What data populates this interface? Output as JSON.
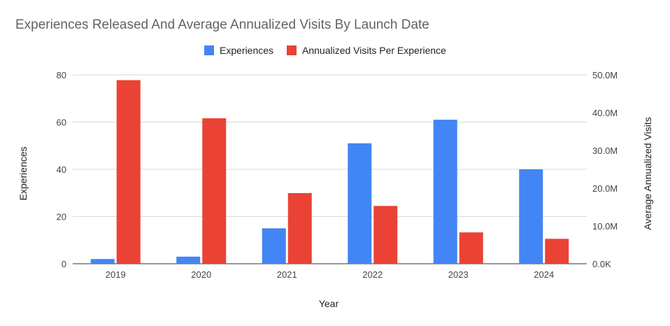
{
  "chart_data": {
    "type": "bar",
    "title": "Experiences Released And Average Annualized Visits By Launch Date",
    "xlabel": "Year",
    "ylabel_left": "Experiences",
    "ylabel_right": "Average Annualized Visits",
    "categories": [
      "2019",
      "2020",
      "2021",
      "2022",
      "2023",
      "2024"
    ],
    "series": [
      {
        "name": "Experiences",
        "axis": "left",
        "color": "#4285F4",
        "values": [
          2,
          3,
          15,
          51,
          61,
          40
        ]
      },
      {
        "name": "Annualized Visits Per Experience",
        "axis": "right",
        "color": "#EA4335",
        "values": [
          48600000,
          38500000,
          18700000,
          15300000,
          8300000,
          6600000
        ]
      }
    ],
    "ylim_left": [
      0,
      80
    ],
    "ylim_right": [
      0,
      50000000
    ],
    "left_ticks": [
      "0",
      "20",
      "40",
      "60",
      "80"
    ],
    "right_ticks": [
      "0.0K",
      "10.0M",
      "20.0M",
      "30.0M",
      "40.0M",
      "50.0M"
    ],
    "legend_position": "top-center",
    "grid": true
  }
}
